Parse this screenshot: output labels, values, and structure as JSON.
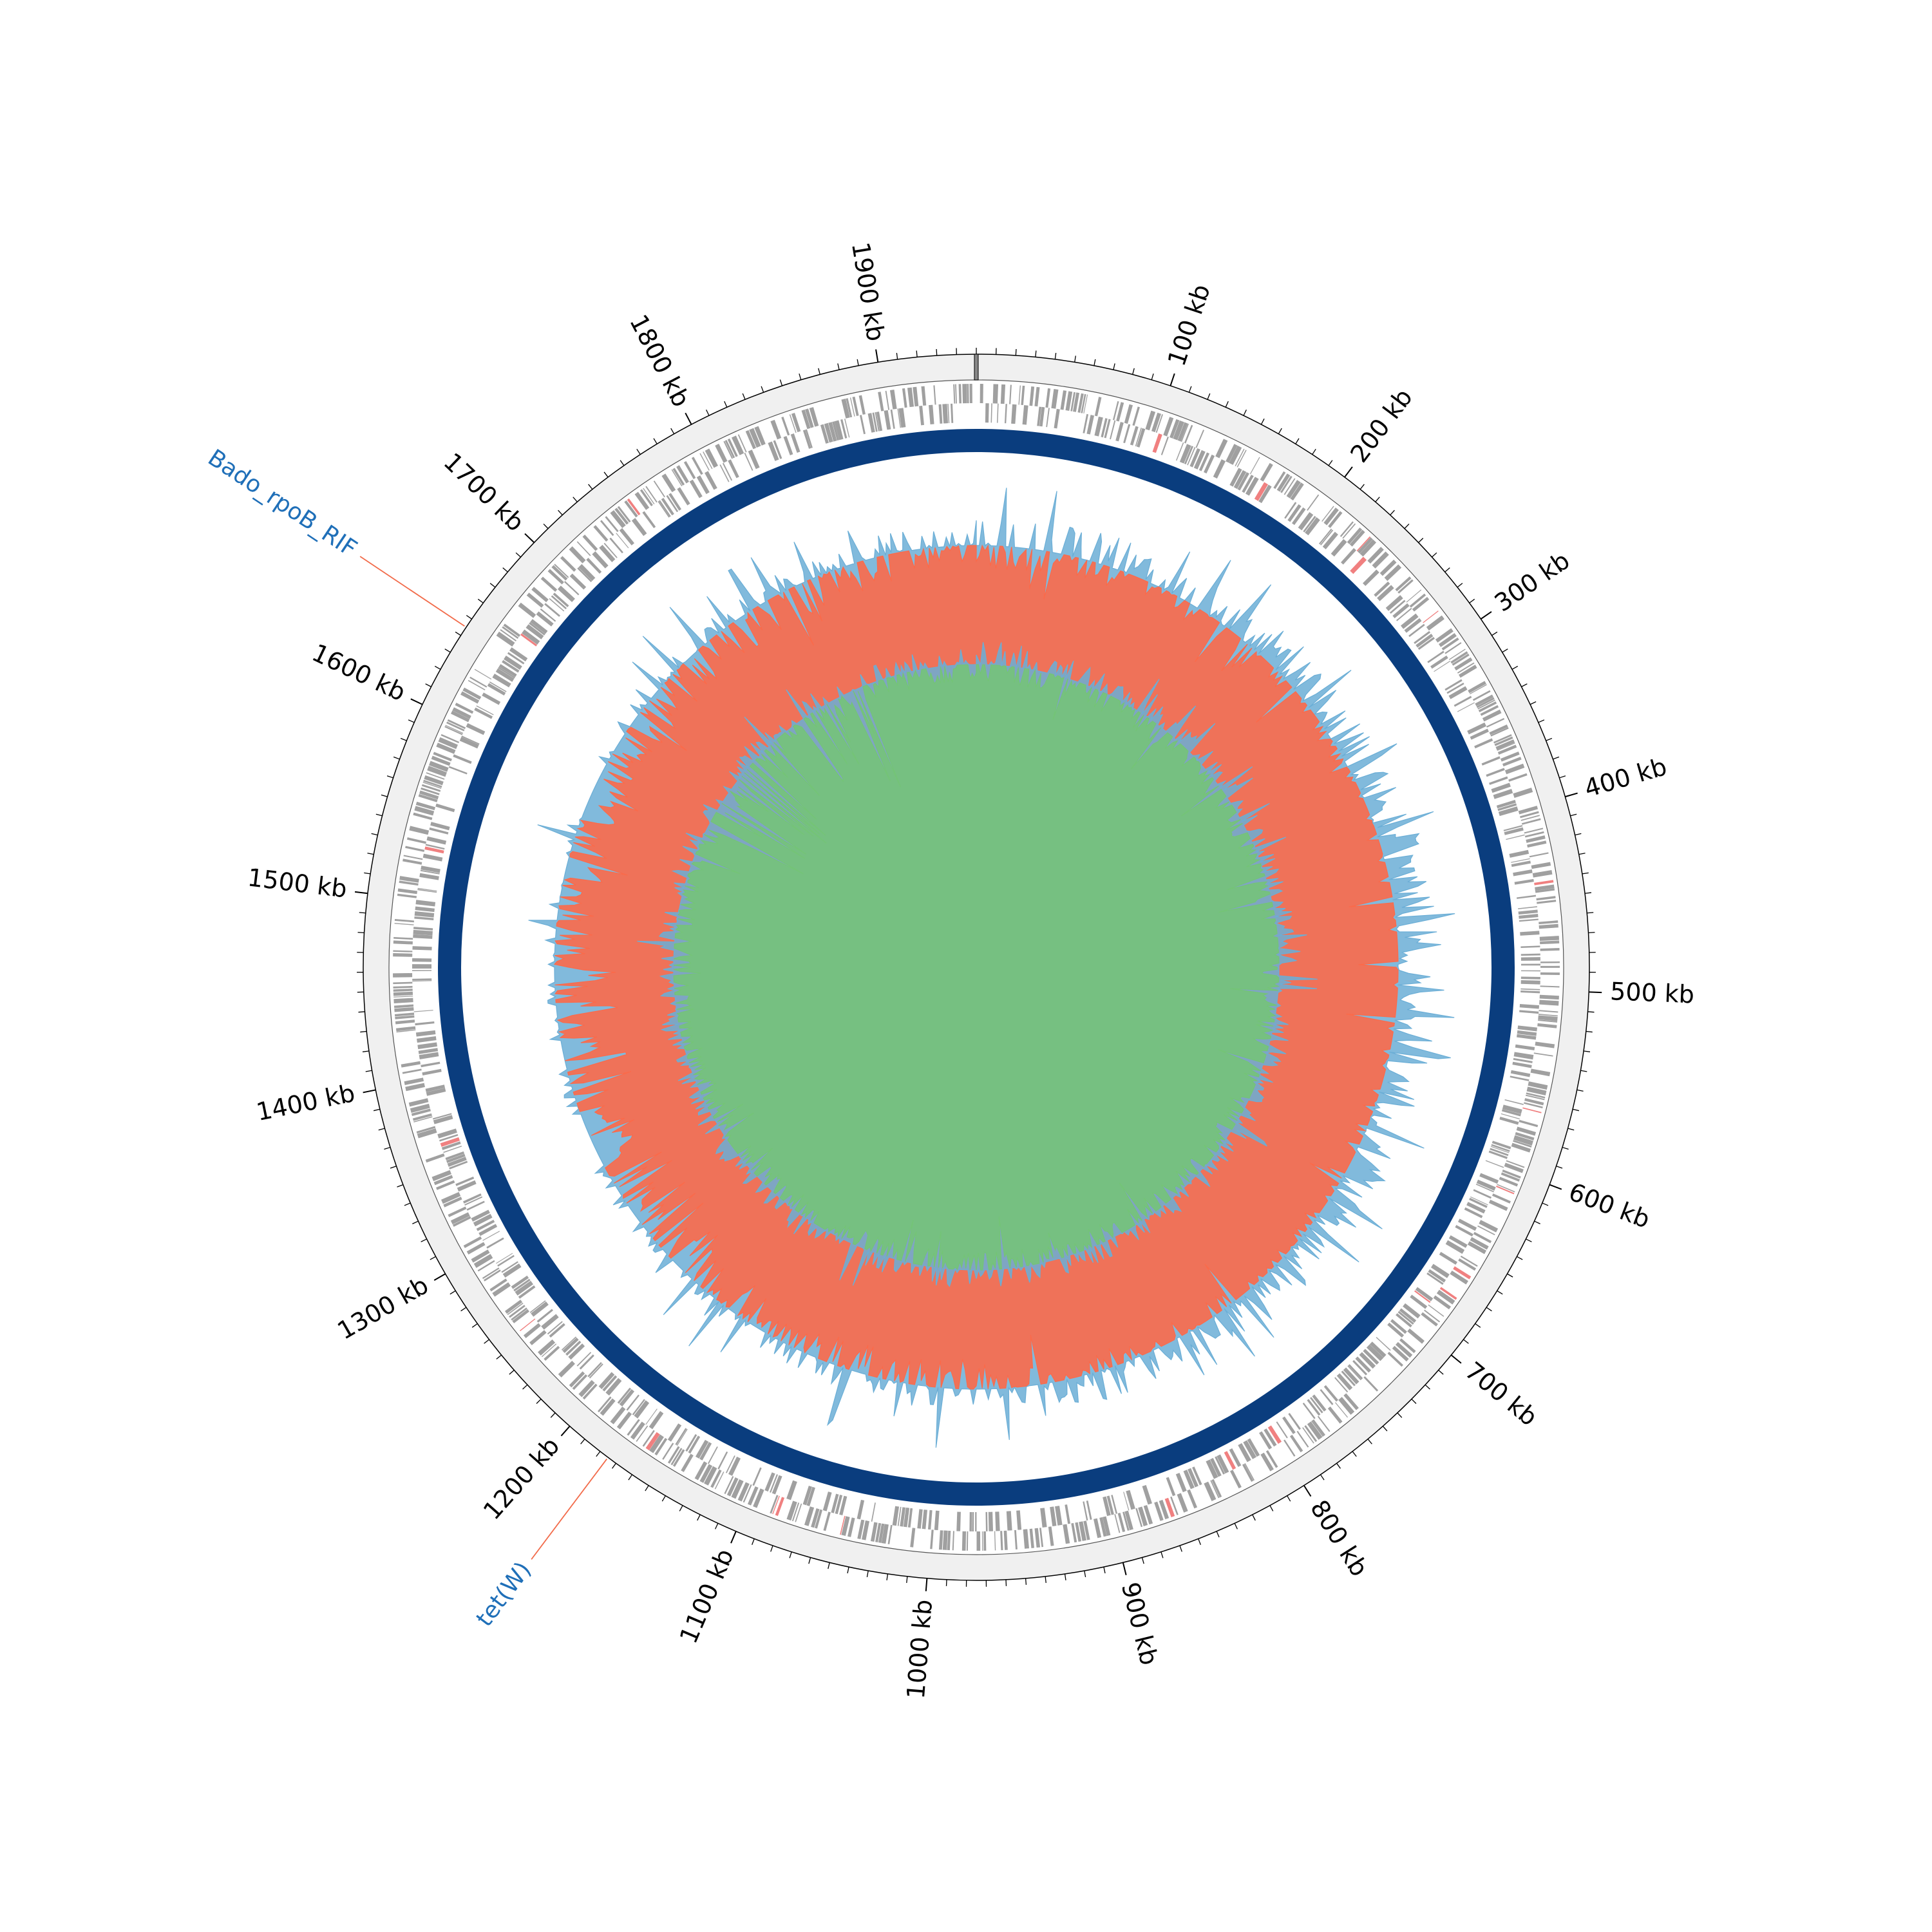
{
  "genome": {
    "length_kb": 1950,
    "start_angle_deg": 0,
    "direction": "clockwise"
  },
  "tick_labels": [
    {
      "kb": 100,
      "label": "100 kb"
    },
    {
      "kb": 200,
      "label": "200 kb"
    },
    {
      "kb": 300,
      "label": "300 kb"
    },
    {
      "kb": 400,
      "label": "400 kb"
    },
    {
      "kb": 500,
      "label": "500 kb"
    },
    {
      "kb": 600,
      "label": "600 kb"
    },
    {
      "kb": 700,
      "label": "700 kb"
    },
    {
      "kb": 800,
      "label": "800 kb"
    },
    {
      "kb": 900,
      "label": "900 kb"
    },
    {
      "kb": 1000,
      "label": "1000 kb"
    },
    {
      "kb": 1100,
      "label": "1100 kb"
    },
    {
      "kb": 1200,
      "label": "1200 kb"
    },
    {
      "kb": 1300,
      "label": "1300 kb"
    },
    {
      "kb": 1400,
      "label": "1400 kb"
    },
    {
      "kb": 1500,
      "label": "1500 kb"
    },
    {
      "kb": 1600,
      "label": "1600 kb"
    },
    {
      "kb": 1700,
      "label": "1700 kb"
    },
    {
      "kb": 1800,
      "label": "1800 kb"
    },
    {
      "kb": 1900,
      "label": "1900 kb"
    }
  ],
  "minor_tick_interval_kb": 10,
  "annotations": [
    {
      "name": "Bado_rpoB_RIF",
      "kb": 1645
    },
    {
      "name": "tet(W)",
      "kb": 1175
    }
  ],
  "colors": {
    "outer_ring": "#f0f0f0",
    "gene_feature": "#a0a0a0",
    "gene_highlight": "#f08080",
    "blue_band": "#0a3d7e",
    "gc_content_above": "#6baed6",
    "gc_content_below": "#fb6a4a",
    "gc_skew_positive": "#74c476",
    "gc_skew_negative": "#6baed6",
    "annotation_text": "#1f6fb8",
    "annotation_line": "#f26b4a",
    "tick": "#000000"
  }
}
